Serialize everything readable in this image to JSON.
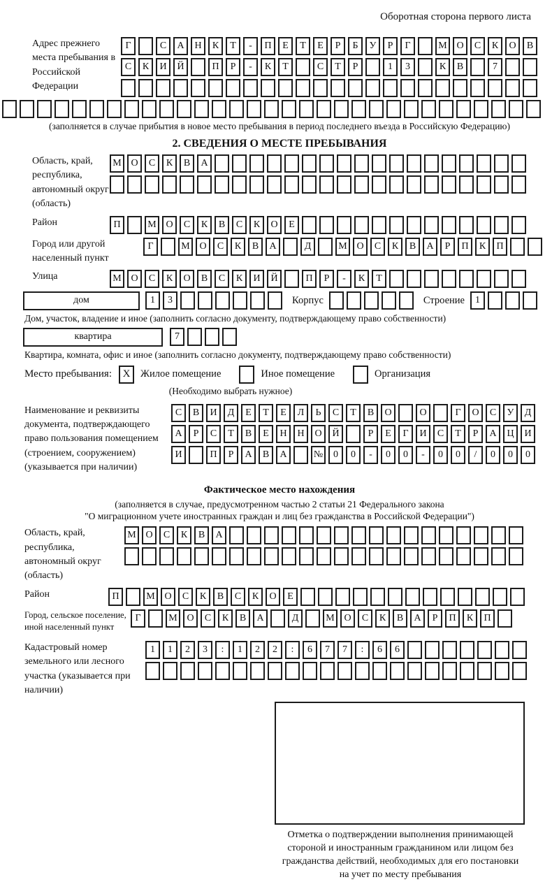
{
  "colors": {
    "ink": "#1c1c1c",
    "paper": "#ffffff"
  },
  "page": {
    "header_note": "Оборотная сторона первого листа"
  },
  "prev_address": {
    "label": "Адрес прежнего места пребывания в Российской Федерации",
    "row1": {
      "text": "Г САНКТ-ПЕТЕРБУРГ МОСКОВ",
      "count": 24
    },
    "row2": {
      "text": "СКИЙ ПР-КТ СТР 13 КВ 7",
      "count": 24
    },
    "row3": {
      "text": "",
      "count": 24
    },
    "row4": {
      "text": "",
      "count": 31
    },
    "note": "(заполняется в случае прибытия в новое место пребывания в период последнего въезда в Российскую Федерацию)"
  },
  "section2": {
    "title": "2. СВЕДЕНИЯ О МЕСТЕ ПРЕБЫВАНИЯ",
    "region": {
      "label": "Область, край, республика, автономный округ (область)",
      "row1": {
        "text": "МОСКВА",
        "count": 24
      },
      "row2": {
        "text": "",
        "count": 24
      }
    },
    "district": {
      "label": "Район",
      "row": {
        "text": "П МОСКВСКОЕ",
        "count": 24
      }
    },
    "city": {
      "label": "Город или другой населенный пункт",
      "row": {
        "text": "Г МОСКВА Д МОСКВАРПКП",
        "count": 23
      }
    },
    "street": {
      "label": "Улица",
      "row": {
        "text": "МОСКОВСКИЙ ПР-КТ",
        "count": 24
      }
    },
    "house": {
      "box_label": "дом",
      "cells": {
        "text": "13",
        "count": 8
      },
      "korpus_label": "Корпус",
      "korpus_cells": {
        "text": "",
        "count": 5
      },
      "stroenie_label": "Строение",
      "stroenie_cells": {
        "text": "1",
        "count": 4
      },
      "note": "Дом, участок, владение и иное (заполнить согласно документу, подтверждающему право собственности)"
    },
    "apartment": {
      "box_label": "квартира",
      "cells": {
        "text": "7",
        "count": 4
      },
      "note": "Квартира, комната, офис и иное (заполнить согласно документу, подтверждающему право собственности)"
    },
    "stay": {
      "label": "Место пребывания:",
      "options": [
        {
          "label": "Жилое помещение",
          "mark": "X"
        },
        {
          "label": "Иное помещение",
          "mark": ""
        },
        {
          "label": "Организация",
          "mark": ""
        }
      ],
      "note": "(Необходимо выбрать нужное)"
    },
    "doc": {
      "label": "Наименование и реквизиты документа, подтверждающего право пользования помещением (строением, сооружением) (указывается при наличии)",
      "row1": {
        "text": "СВИДЕТЕЛЬСТВО О ГОСУД",
        "count": 21
      },
      "row2": {
        "text": "АРСТВЕННОЙ РЕГИСТРАЦИ",
        "count": 21
      },
      "row3": {
        "text": "И ПРАВА №00-00-00/000",
        "count": 21
      }
    }
  },
  "actual_location": {
    "title": "Фактическое место нахождения",
    "note1": "(заполняется в случае, предусмотренном частью 2 статьи 21 Федерального закона",
    "note2": "\"О миграционном учете иностранных граждан и лиц без гражданства в Российской Федерации\")",
    "region": {
      "label": "Область, край, республика, автономный округ (область)",
      "row1": {
        "text": "МОСКВА",
        "count": 23
      },
      "row2": {
        "text": "",
        "count": 23
      }
    },
    "district": {
      "label": "Район",
      "row": {
        "text": "П МОСКВСКОЕ",
        "count": 24
      }
    },
    "city": {
      "label": "Город, сельское поселение, иной населенный пункт",
      "row": {
        "text": "Г МОСКВА Д МОСКВАРПКП",
        "count": 22
      }
    },
    "cadastre": {
      "label": "Кадастровый номер земельного или лесного участка (указывается при наличии)",
      "row1": {
        "text": "1123:122:677:66",
        "count": 22
      },
      "row2": {
        "text": "",
        "count": 22
      }
    },
    "stamp_caption": "Отметка о подтверждении выполнения принимающей стороной и иностранным гражданином или лицом без гражданства действий, необходимых для его постановки на учет по месту пребывания"
  }
}
